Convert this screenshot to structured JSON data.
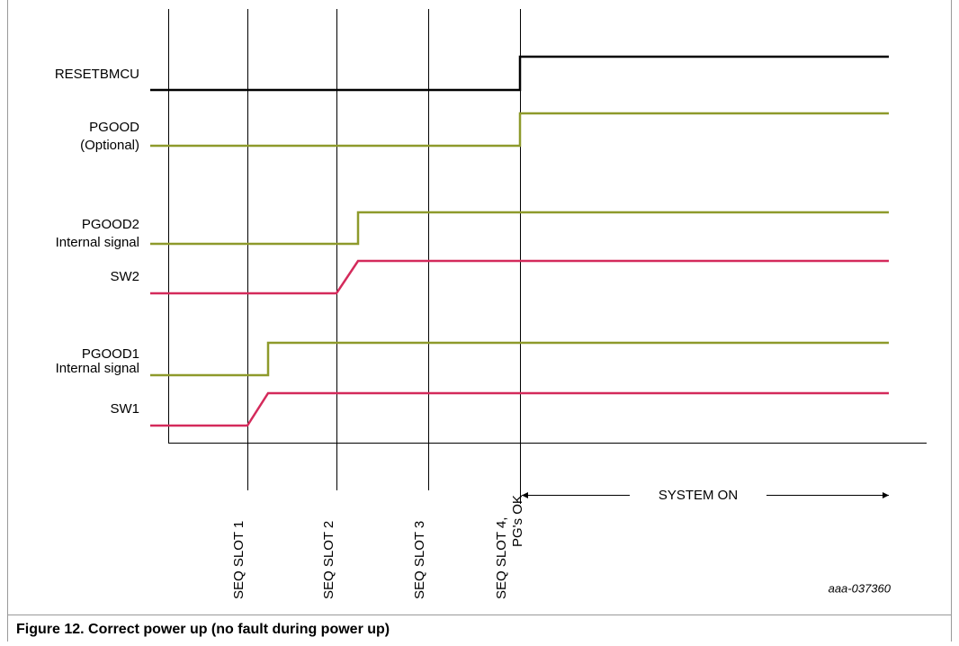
{
  "signals": [
    {
      "label": [
        "RESETBMCU"
      ]
    },
    {
      "label": [
        "PGOOD",
        "(Optional)"
      ]
    },
    {
      "label": [
        "PGOOD2",
        "Internal signal"
      ]
    },
    {
      "label": [
        "SW2"
      ]
    },
    {
      "label": [
        "PGOOD1",
        "Internal signal"
      ]
    },
    {
      "label": [
        "SW1"
      ]
    }
  ],
  "slots": [
    {
      "label": [
        "SEQ SLOT 1"
      ]
    },
    {
      "label": [
        "SEQ SLOT 2"
      ]
    },
    {
      "label": [
        "SEQ SLOT 3"
      ]
    },
    {
      "label": [
        "SEQ SLOT 4,",
        "PG's OK"
      ]
    }
  ],
  "system_on": "SYSTEM ON",
  "figure_id": "aaa-037360",
  "caption": "Figure 12.  Correct power up (no fault during power up)"
}
